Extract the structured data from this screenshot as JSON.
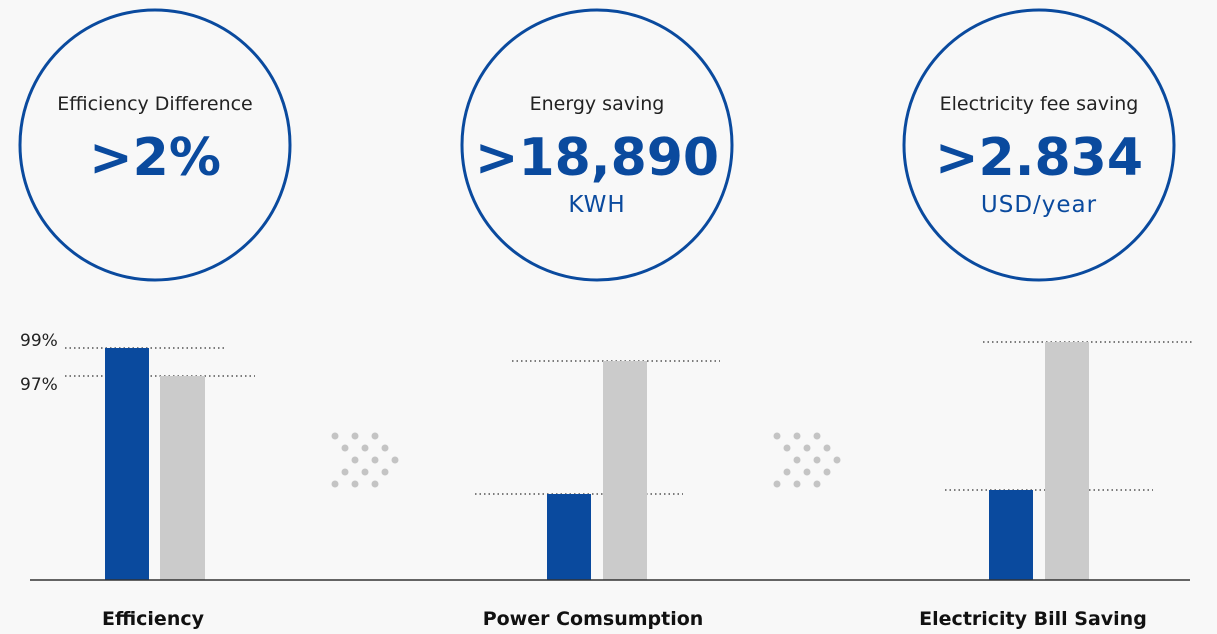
{
  "circles": [
    {
      "label": "Efficiency Difference",
      "value": ">2%"
    },
    {
      "label": "Energy saving",
      "value": ">18,890",
      "unit": "KWH"
    },
    {
      "label": "Electricity fee saving",
      "value": ">2.834",
      "unit": "USD/year"
    }
  ],
  "groups": [
    {
      "label": "Efficiency",
      "ticks": [
        "99%",
        "97%"
      ]
    },
    {
      "label": "Power Comsumption"
    },
    {
      "label": "Electricity Bill Saving"
    }
  ]
}
